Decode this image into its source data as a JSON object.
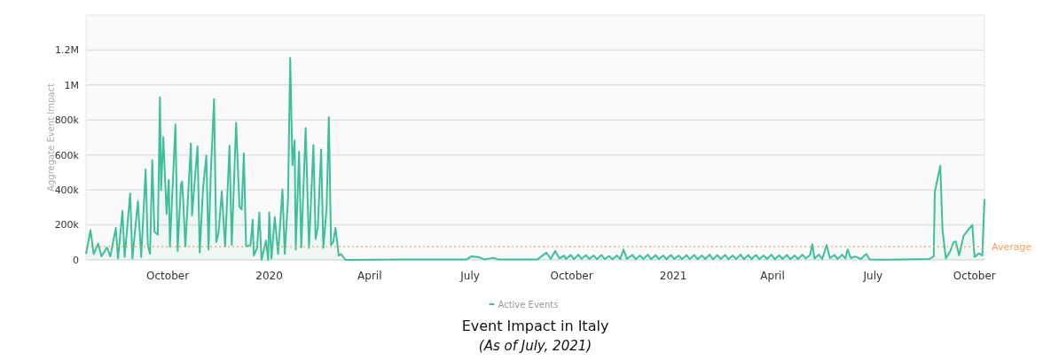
{
  "chart_data": {
    "type": "area",
    "title": "Event Impact in Italy",
    "subtitle": "(As of July, 2021)",
    "ylabel": "Aggregate Event Impact",
    "xlim": [
      "2019-07-19",
      "2021-10-10"
    ],
    "xticks": [
      {
        "value": "2019-10-01",
        "label": "October"
      },
      {
        "value": "2020-01-01",
        "label": "2020"
      },
      {
        "value": "2020-04-01",
        "label": "April"
      },
      {
        "value": "2020-07-01",
        "label": "July"
      },
      {
        "value": "2020-10-01",
        "label": "October"
      },
      {
        "value": "2021-01-01",
        "label": "2021"
      },
      {
        "value": "2021-04-01",
        "label": "April"
      },
      {
        "value": "2021-07-01",
        "label": "July"
      },
      {
        "value": "2021-10-01",
        "label": "October"
      }
    ],
    "ylim": [
      0,
      1400000
    ],
    "yticks": [
      0,
      {
        "value": 200000,
        "label": "200k"
      },
      {
        "value": 400000,
        "label": "400k"
      },
      {
        "value": 600000,
        "label": "600k"
      },
      {
        "value": 800000,
        "label": "800k"
      },
      {
        "value": 1000000,
        "label": "1M"
      },
      {
        "value": 1200000,
        "label": "1.2M"
      }
    ],
    "grid": "y",
    "legend": "bottom",
    "ref_lines": [
      {
        "axis": "y",
        "value": 75000,
        "label": "Average",
        "color": "#f5a25d",
        "line_style": "dotted"
      }
    ],
    "series": [
      {
        "name": "Active Events",
        "color": "#3dbf9c",
        "x": [
          "2019-07-19",
          "2019-07-23",
          "2019-07-26",
          "2019-07-30",
          "2019-08-02",
          "2019-08-07",
          "2019-08-10",
          "2019-08-15",
          "2019-08-17",
          "2019-08-21",
          "2019-08-23",
          "2019-08-28",
          "2019-08-30",
          "2019-09-04",
          "2019-09-07",
          "2019-09-11",
          "2019-09-13",
          "2019-09-15",
          "2019-09-17",
          "2019-09-19",
          "2019-09-22",
          "2019-09-24",
          "2019-09-25",
          "2019-09-27",
          "2019-09-30",
          "2019-10-02",
          "2019-10-03",
          "2019-10-08",
          "2019-10-10",
          "2019-10-13",
          "2019-10-14",
          "2019-10-15",
          "2019-10-17",
          "2019-10-22",
          "2019-10-23",
          "2019-10-26",
          "2019-10-28",
          "2019-10-30",
          "2019-11-02",
          "2019-11-05",
          "2019-11-07",
          "2019-11-09",
          "2019-11-12",
          "2019-11-14",
          "2019-11-16",
          "2019-11-19",
          "2019-11-22",
          "2019-11-26",
          "2019-11-28",
          "2019-12-02",
          "2019-12-05",
          "2019-12-07",
          "2019-12-09",
          "2019-12-11",
          "2019-12-15",
          "2019-12-17",
          "2019-12-18",
          "2019-12-21",
          "2019-12-23",
          "2019-12-25",
          "2019-12-29",
          "2019-12-31",
          "2020-01-01",
          "2020-01-03",
          "2020-01-06",
          "2020-01-09",
          "2020-01-13",
          "2020-01-15",
          "2020-01-18",
          "2020-01-20",
          "2020-01-22",
          "2020-01-24",
          "2020-01-25",
          "2020-01-28",
          "2020-01-30",
          "2020-02-03",
          "2020-02-06",
          "2020-02-10",
          "2020-02-12",
          "2020-02-14",
          "2020-02-17",
          "2020-02-19",
          "2020-02-22",
          "2020-02-24",
          "2020-02-26",
          "2020-02-28",
          "2020-03-01",
          "2020-03-04",
          "2020-03-06",
          "2020-03-10",
          "2020-05-01",
          "2020-06-28",
          "2020-07-02",
          "2020-07-09",
          "2020-07-14",
          "2020-07-22",
          "2020-07-27",
          "2020-08-31",
          "2020-09-08",
          "2020-09-12",
          "2020-09-16",
          "2020-09-20",
          "2020-09-24",
          "2020-09-26",
          "2020-09-30",
          "2020-10-03",
          "2020-10-07",
          "2020-10-10",
          "2020-10-14",
          "2020-10-17",
          "2020-10-21",
          "2020-10-24",
          "2020-10-28",
          "2020-10-31",
          "2020-11-04",
          "2020-11-07",
          "2020-11-11",
          "2020-11-14",
          "2020-11-17",
          "2020-11-20",
          "2020-11-25",
          "2020-11-28",
          "2020-12-02",
          "2020-12-05",
          "2020-12-09",
          "2020-12-12",
          "2020-12-16",
          "2020-12-19",
          "2020-12-23",
          "2020-12-26",
          "2020-12-30",
          "2021-01-02",
          "2021-01-06",
          "2021-01-09",
          "2021-01-13",
          "2021-01-16",
          "2021-01-20",
          "2021-01-23",
          "2021-01-27",
          "2021-01-30",
          "2021-02-03",
          "2021-02-06",
          "2021-02-10",
          "2021-02-13",
          "2021-02-17",
          "2021-02-20",
          "2021-02-24",
          "2021-02-27",
          "2021-03-03",
          "2021-03-06",
          "2021-03-10",
          "2021-03-13",
          "2021-03-17",
          "2021-03-20",
          "2021-03-24",
          "2021-03-27",
          "2021-03-31",
          "2021-04-03",
          "2021-04-07",
          "2021-04-10",
          "2021-04-14",
          "2021-04-17",
          "2021-04-21",
          "2021-04-24",
          "2021-04-28",
          "2021-05-01",
          "2021-05-05",
          "2021-05-07",
          "2021-05-09",
          "2021-05-13",
          "2021-05-16",
          "2021-05-20",
          "2021-05-23",
          "2021-05-27",
          "2021-05-30",
          "2021-06-03",
          "2021-06-06",
          "2021-06-08",
          "2021-06-11",
          "2021-06-15",
          "2021-06-20",
          "2021-06-25",
          "2021-06-28",
          "2021-07-15",
          "2021-08-21",
          "2021-08-25",
          "2021-08-26",
          "2021-08-28",
          "2021-08-31",
          "2021-09-02",
          "2021-09-05",
          "2021-09-09",
          "2021-09-12",
          "2021-09-14",
          "2021-09-17",
          "2021-09-21",
          "2021-09-25",
          "2021-09-29",
          "2021-10-01",
          "2021-10-05",
          "2021-10-08",
          "2021-10-10"
        ],
        "values": [
          34000,
          170000,
          34000,
          93000,
          20000,
          71000,
          20000,
          183000,
          8000,
          280000,
          17000,
          381000,
          8000,
          336000,
          17000,
          517000,
          85000,
          34000,
          571000,
          161000,
          144000,
          929000,
          398000,
          703000,
          263000,
          458000,
          76000,
          775000,
          51000,
          432000,
          449000,
          347000,
          76000,
          666000,
          254000,
          492000,
          649000,
          42000,
          407000,
          597000,
          59000,
          492000,
          919000,
          102000,
          153000,
          390000,
          76000,
          653000,
          85000,
          785000,
          305000,
          288000,
          610000,
          76000,
          85000,
          229000,
          25000,
          68000,
          271000,
          0,
          110000,
          0,
          271000,
          8000,
          246000,
          34000,
          403000,
          34000,
          347000,
          1155000,
          542000,
          683000,
          59000,
          619000,
          71000,
          754000,
          68000,
          658000,
          119000,
          186000,
          631000,
          68000,
          297000,
          817000,
          85000,
          102000,
          183000,
          25000,
          34000,
          0,
          2000,
          3000,
          20000,
          15000,
          3000,
          12000,
          2000,
          2000,
          42000,
          5000,
          51000,
          8000,
          25000,
          5000,
          28000,
          4000,
          30000,
          6000,
          27000,
          5000,
          25000,
          4000,
          28000,
          5000,
          22000,
          4000,
          25000,
          5000,
          59000,
          6000,
          28000,
          4000,
          25000,
          5000,
          30000,
          4000,
          27000,
          5000,
          25000,
          4000,
          28000,
          5000,
          25000,
          4000,
          27000,
          5000,
          28000,
          4000,
          25000,
          5000,
          30000,
          4000,
          27000,
          5000,
          28000,
          4000,
          25000,
          5000,
          30000,
          4000,
          27000,
          5000,
          28000,
          4000,
          25000,
          5000,
          30000,
          4000,
          27000,
          5000,
          28000,
          4000,
          25000,
          5000,
          30000,
          8000,
          28000,
          90000,
          8000,
          30000,
          5000,
          85000,
          10000,
          28000,
          5000,
          30000,
          8000,
          59000,
          10000,
          20000,
          5000,
          34000,
          3000,
          1000,
          5000,
          20000,
          390000,
          449000,
          539000,
          170000,
          8000,
          51000,
          102000,
          105000,
          25000,
          136000,
          170000,
          200000,
          17000,
          37000,
          25000,
          347000
        ]
      }
    ]
  }
}
